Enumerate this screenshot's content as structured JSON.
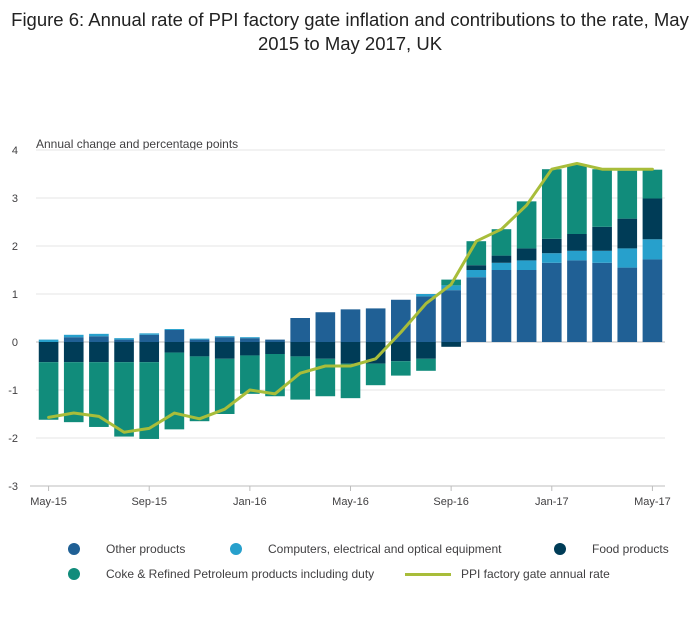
{
  "chart_data": {
    "type": "bar",
    "title": "Figure 6: Annual rate of PPI factory gate inflation and contributions to the rate, May 2015 to May 2017, UK",
    "ylabel": "Annual change and percentage points",
    "ylim": [
      -3,
      4
    ],
    "yticks": [
      "4",
      "3",
      "2",
      "1",
      "0",
      "-1",
      "-2",
      "-3"
    ],
    "stacked": true,
    "grid": true,
    "legend_position": "bottom",
    "categories": [
      "May-15",
      "Jun-15",
      "Jul-15",
      "Aug-15",
      "Sep-15",
      "Oct-15",
      "Nov-15",
      "Dec-15",
      "Jan-16",
      "Feb-16",
      "Mar-16",
      "Apr-16",
      "May-16",
      "Jun-16",
      "Jul-16",
      "Aug-16",
      "Sep-16",
      "Oct-16",
      "Nov-16",
      "Dec-16",
      "Jan-17",
      "Feb-17",
      "Mar-17",
      "Apr-17",
      "May-17"
    ],
    "x_tick_labels": [
      {
        "index": 0,
        "label": "May-15"
      },
      {
        "index": 4,
        "label": "Sep-15"
      },
      {
        "index": 8,
        "label": "Jan-16"
      },
      {
        "index": 12,
        "label": "May-16"
      },
      {
        "index": 16,
        "label": "Sep-16"
      },
      {
        "index": 20,
        "label": "Jan-17"
      },
      {
        "index": 24,
        "label": "May-17"
      }
    ],
    "series": [
      {
        "name": "Other products",
        "color": "#206095",
        "kind": "bar",
        "values": [
          0.0,
          0.1,
          0.12,
          0.05,
          0.15,
          0.25,
          0.05,
          0.1,
          0.08,
          0.05,
          0.5,
          0.62,
          0.68,
          0.7,
          0.88,
          0.95,
          1.08,
          1.35,
          1.5,
          1.5,
          1.65,
          1.7,
          1.65,
          1.55,
          1.72
        ]
      },
      {
        "name": "Computers, electrical and optical equipment",
        "color": "#27a0cc",
        "kind": "bar",
        "values": [
          0.05,
          0.05,
          0.05,
          0.03,
          0.03,
          0.02,
          0.02,
          0.02,
          0.02,
          0.0,
          0.0,
          0.0,
          0.0,
          0.0,
          0.0,
          0.05,
          0.1,
          0.15,
          0.15,
          0.2,
          0.2,
          0.2,
          0.25,
          0.4,
          0.42
        ]
      },
      {
        "name": "Food products",
        "color": "#003c57",
        "kind": "bar",
        "values": [
          -0.42,
          -0.42,
          -0.42,
          -0.42,
          -0.42,
          -0.22,
          -0.3,
          -0.35,
          -0.28,
          -0.25,
          -0.3,
          -0.35,
          -0.45,
          -0.45,
          -0.4,
          -0.35,
          -0.1,
          0.1,
          0.15,
          0.25,
          0.3,
          0.35,
          0.5,
          0.62,
          0.85
        ]
      },
      {
        "name": "Coke & Refined Petroleum products including duty",
        "color": "#118c7b",
        "kind": "bar",
        "values": [
          -1.2,
          -1.25,
          -1.35,
          -1.55,
          -1.6,
          -1.6,
          -1.35,
          -1.15,
          -0.8,
          -0.88,
          -0.9,
          -0.78,
          -0.72,
          -0.45,
          -0.3,
          -0.25,
          0.12,
          0.5,
          0.55,
          0.98,
          1.45,
          1.45,
          1.2,
          1.0,
          0.6
        ]
      },
      {
        "name": "PPI factory gate annual rate",
        "color": "#a8bd3a",
        "kind": "line",
        "values": [
          -1.57,
          -1.48,
          -1.55,
          -1.88,
          -1.8,
          -1.48,
          -1.6,
          -1.4,
          -1.0,
          -1.08,
          -0.65,
          -0.5,
          -0.5,
          -0.35,
          0.2,
          0.8,
          1.2,
          2.1,
          2.35,
          2.85,
          3.6,
          3.72,
          3.6,
          3.6,
          3.6
        ]
      }
    ]
  }
}
